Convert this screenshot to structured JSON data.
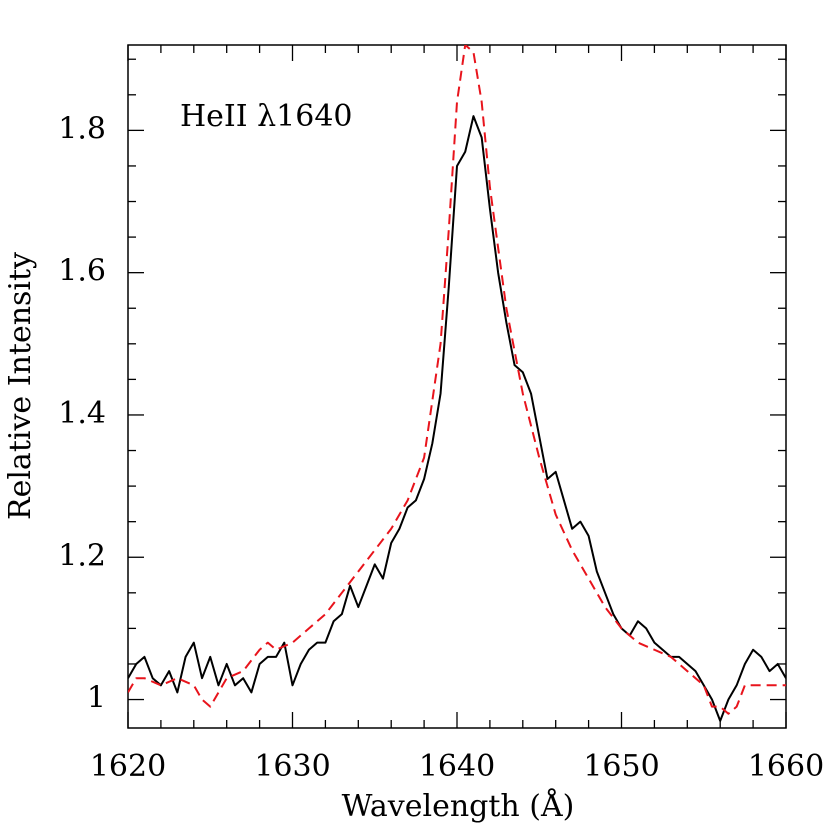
{
  "chart_data": {
    "type": "line",
    "annotation": "HeII λ1640",
    "xlabel": "Wavelength (Å)",
    "ylabel": "Relative Intensity",
    "xlim": [
      1620,
      1660
    ],
    "ylim": [
      0.96,
      1.92
    ],
    "xticks": [
      1620,
      1630,
      1640,
      1650,
      1660
    ],
    "yticks": [
      1,
      1.2,
      1.4,
      1.6,
      1.8
    ],
    "xticks_minor": [
      1622,
      1624,
      1626,
      1628,
      1632,
      1634,
      1636,
      1638,
      1642,
      1644,
      1646,
      1648,
      1652,
      1654,
      1656,
      1658
    ],
    "yticks_minor": [
      1.05,
      1.1,
      1.15,
      1.25,
      1.3,
      1.35,
      1.45,
      1.5,
      1.55,
      1.65,
      1.7,
      1.75,
      1.85,
      1.9
    ],
    "series": [
      {
        "color": "#000000",
        "dash": false,
        "x": [
          1620,
          1620.5,
          1621,
          1621.5,
          1622,
          1622.5,
          1623,
          1623.5,
          1624,
          1624.5,
          1625,
          1625.5,
          1626,
          1626.5,
          1627,
          1627.5,
          1628,
          1628.5,
          1629,
          1629.5,
          1630,
          1630.5,
          1631,
          1631.5,
          1632,
          1632.5,
          1633,
          1633.5,
          1634,
          1634.5,
          1635,
          1635.5,
          1636,
          1636.5,
          1637,
          1637.5,
          1638,
          1638.5,
          1639,
          1639.5,
          1640,
          1640.5,
          1641,
          1641.5,
          1642,
          1642.5,
          1643,
          1643.5,
          1644,
          1644.5,
          1645,
          1645.5,
          1646,
          1646.5,
          1647,
          1647.5,
          1648,
          1648.5,
          1649,
          1649.5,
          1650,
          1650.5,
          1651,
          1651.5,
          1652,
          1652.5,
          1653,
          1653.5,
          1654,
          1654.5,
          1655,
          1655.5,
          1656,
          1656.5,
          1657,
          1657.5,
          1658,
          1658.5,
          1659,
          1659.5,
          1660
        ],
        "values": [
          1.03,
          1.05,
          1.06,
          1.03,
          1.02,
          1.04,
          1.01,
          1.06,
          1.08,
          1.03,
          1.06,
          1.02,
          1.05,
          1.02,
          1.03,
          1.01,
          1.05,
          1.06,
          1.06,
          1.08,
          1.02,
          1.05,
          1.07,
          1.08,
          1.08,
          1.11,
          1.12,
          1.16,
          1.13,
          1.16,
          1.19,
          1.17,
          1.22,
          1.24,
          1.27,
          1.28,
          1.31,
          1.36,
          1.43,
          1.58,
          1.75,
          1.77,
          1.82,
          1.79,
          1.69,
          1.6,
          1.53,
          1.47,
          1.46,
          1.43,
          1.37,
          1.31,
          1.32,
          1.28,
          1.24,
          1.25,
          1.23,
          1.18,
          1.15,
          1.12,
          1.1,
          1.09,
          1.11,
          1.1,
          1.08,
          1.07,
          1.06,
          1.06,
          1.05,
          1.04,
          1.02,
          1.0,
          0.97,
          1.0,
          1.02,
          1.05,
          1.07,
          1.06,
          1.04,
          1.05,
          1.03
        ]
      },
      {
        "color": "#e8141c",
        "dash": true,
        "x": [
          1620,
          1620.5,
          1621,
          1622,
          1623,
          1624,
          1624.5,
          1625,
          1625.5,
          1626,
          1627,
          1628,
          1628.5,
          1629,
          1630,
          1631,
          1632,
          1633,
          1634,
          1635,
          1636,
          1637,
          1638,
          1639,
          1639.5,
          1640,
          1640.5,
          1641,
          1641.5,
          1642,
          1643,
          1644,
          1645,
          1646,
          1647,
          1648,
          1649,
          1650,
          1651,
          1652,
          1653,
          1654,
          1655,
          1655.5,
          1656,
          1656.5,
          1657,
          1657.5,
          1658,
          1659,
          1660
        ],
        "values": [
          1.01,
          1.03,
          1.03,
          1.02,
          1.03,
          1.02,
          1.0,
          0.99,
          1.01,
          1.03,
          1.04,
          1.07,
          1.08,
          1.07,
          1.08,
          1.1,
          1.12,
          1.15,
          1.18,
          1.21,
          1.24,
          1.28,
          1.34,
          1.5,
          1.66,
          1.84,
          1.92,
          1.91,
          1.84,
          1.72,
          1.55,
          1.43,
          1.34,
          1.26,
          1.21,
          1.17,
          1.13,
          1.1,
          1.08,
          1.07,
          1.06,
          1.04,
          1.02,
          0.99,
          0.99,
          0.98,
          0.99,
          1.02,
          1.02,
          1.02,
          1.02
        ]
      }
    ]
  }
}
